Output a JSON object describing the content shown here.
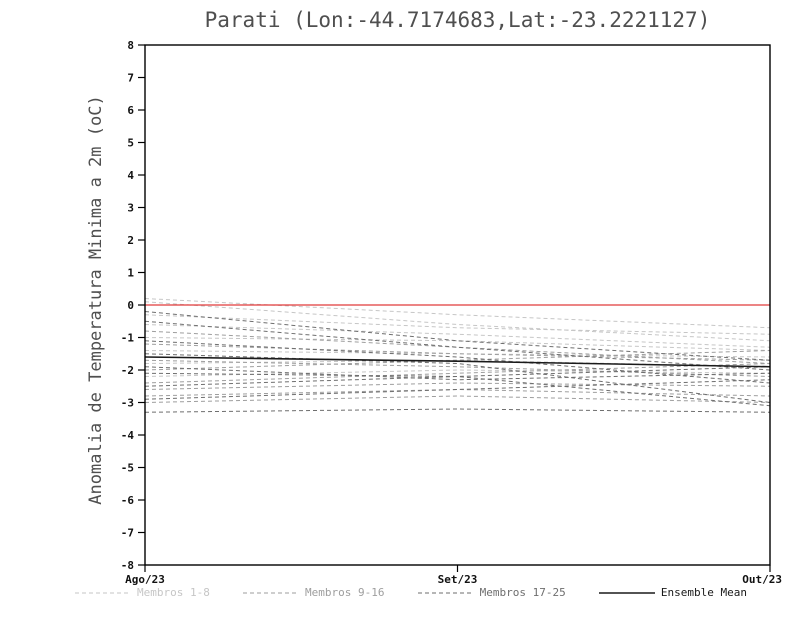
{
  "title": "Parati (Lon:-44.7174683,Lat:-23.2221127)",
  "ylabel": "Anomalia de Temperatura Minima a 2m (oC)",
  "chart_data": {
    "type": "line",
    "title": "Parati (Lon:-44.7174683,Lat:-23.2221127)",
    "ylabel": "Anomalia de Temperatura Minima a 2m (oC)",
    "xlabel": "",
    "ylim": [
      -8,
      8
    ],
    "ytick_step": 1,
    "grid": false,
    "legend_position": "bottom",
    "x_categories": [
      "Ago/23",
      "Set/23",
      "Out/23"
    ],
    "zero_line": {
      "value": 0,
      "color": "#e03a3a"
    },
    "groups": [
      {
        "name": "Membros 1-8",
        "color": "#c6c6c6",
        "style": "dashed",
        "members": [
          [
            0.2,
            -0.3,
            -0.7
          ],
          [
            0.1,
            -0.6,
            -1.1
          ],
          [
            -0.3,
            -0.7,
            -0.9
          ],
          [
            -0.6,
            -0.9,
            -1.3
          ],
          [
            -1.0,
            -1.1,
            -1.4
          ],
          [
            -1.4,
            -1.5,
            -1.6
          ],
          [
            -1.8,
            -1.7,
            -1.9
          ],
          [
            -2.2,
            -2.0,
            -2.1
          ]
        ]
      },
      {
        "name": "Membros 9-16",
        "color": "#9e9e9e",
        "style": "dashed",
        "members": [
          [
            -2.4,
            -2.1,
            -1.8
          ],
          [
            -2.6,
            -2.4,
            -2.5
          ],
          [
            -2.8,
            -2.6,
            -2.8
          ],
          [
            -3.0,
            -2.8,
            -3.0
          ],
          [
            -2.0,
            -1.7,
            -1.4
          ],
          [
            -1.7,
            -1.9,
            -2.2
          ],
          [
            -1.2,
            -1.5,
            -1.7
          ],
          [
            -0.8,
            -1.3,
            -1.8
          ]
        ]
      },
      {
        "name": "Membros 17-25",
        "color": "#6e6e6e",
        "style": "dashed",
        "members": [
          [
            -0.2,
            -1.1,
            -1.7
          ],
          [
            -0.5,
            -1.3,
            -2.0
          ],
          [
            -1.1,
            -1.6,
            -2.4
          ],
          [
            -1.5,
            -1.8,
            -3.0
          ],
          [
            -2.1,
            -2.2,
            -3.1
          ],
          [
            -2.5,
            -2.2,
            -1.9
          ],
          [
            -2.9,
            -2.6,
            -2.3
          ],
          [
            -3.3,
            -3.2,
            -3.3
          ],
          [
            -1.9,
            -2.3,
            -2.1
          ]
        ]
      }
    ],
    "mean": {
      "name": "Ensemble Mean",
      "color": "#1a1a1a",
      "style": "solid",
      "values": [
        -1.6,
        -1.73,
        -1.9
      ]
    }
  },
  "colors": {
    "axis": "#000000",
    "tick_label": "#111111",
    "title_text": "#4f4f4f",
    "zero_line": "#e03a3a"
  }
}
